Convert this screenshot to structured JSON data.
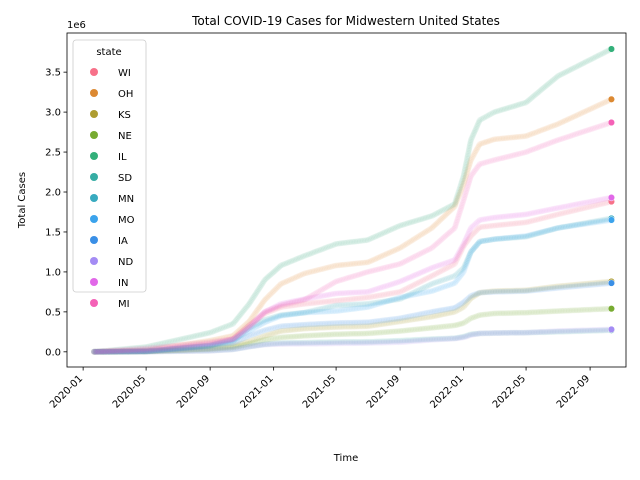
{
  "chart_data": {
    "type": "scatter",
    "title": "Total COVID-19 Cases for Midwestern United States",
    "xlabel": "Time",
    "ylabel": "Total Cases",
    "y_scale_label": "1e6",
    "ylim": [
      -0.19,
      3.99
    ],
    "xlim": [
      "2019-12-01",
      "2022-11-09"
    ],
    "x_ticks": [
      "2020-01",
      "2020-05",
      "2020-09",
      "2021-01",
      "2021-05",
      "2021-09",
      "2022-01",
      "2022-05",
      "2022-09"
    ],
    "y_ticks": [
      "0.0",
      "0.5",
      "1.0",
      "1.5",
      "2.0",
      "2.5",
      "3.0",
      "3.5"
    ],
    "grid": false,
    "legend": {
      "title": "state",
      "placement": "top-left"
    },
    "series": [
      {
        "name": "WI",
        "color": "#f77189",
        "points": [
          [
            "2020-01-22",
            0
          ],
          [
            "2020-05-01",
            0.0065
          ],
          [
            "2020-09-01",
            0.08
          ],
          [
            "2020-10-15",
            0.16
          ],
          [
            "2020-11-15",
            0.33
          ],
          [
            "2020-12-15",
            0.48
          ],
          [
            "2021-01-15",
            0.56
          ],
          [
            "2021-03-01",
            0.6
          ],
          [
            "2021-05-01",
            0.64
          ],
          [
            "2021-07-01",
            0.68
          ],
          [
            "2021-09-01",
            0.75
          ],
          [
            "2021-11-01",
            0.95
          ],
          [
            "2021-12-15",
            1.1
          ],
          [
            "2022-01-01",
            1.32
          ],
          [
            "2022-01-15",
            1.45
          ],
          [
            "2022-02-01",
            1.56
          ],
          [
            "2022-03-01",
            1.58
          ],
          [
            "2022-05-01",
            1.62
          ],
          [
            "2022-07-01",
            1.72
          ],
          [
            "2022-10-12",
            1.88
          ]
        ]
      },
      {
        "name": "OH",
        "color": "#dc8932",
        "points": [
          [
            "2020-01-22",
            0
          ],
          [
            "2020-05-01",
            0.018
          ],
          [
            "2020-09-01",
            0.14
          ],
          [
            "2020-10-15",
            0.2
          ],
          [
            "2020-11-15",
            0.38
          ],
          [
            "2020-12-15",
            0.65
          ],
          [
            "2021-01-15",
            0.85
          ],
          [
            "2021-03-01",
            0.98
          ],
          [
            "2021-05-01",
            1.08
          ],
          [
            "2021-07-01",
            1.12
          ],
          [
            "2021-09-01",
            1.3
          ],
          [
            "2021-11-01",
            1.55
          ],
          [
            "2021-12-15",
            1.82
          ],
          [
            "2022-01-01",
            2.1
          ],
          [
            "2022-01-15",
            2.4
          ],
          [
            "2022-02-01",
            2.6
          ],
          [
            "2022-03-01",
            2.66
          ],
          [
            "2022-05-01",
            2.7
          ],
          [
            "2022-07-01",
            2.85
          ],
          [
            "2022-10-12",
            3.16
          ]
        ]
      },
      {
        "name": "KS",
        "color": "#ae9d31",
        "points": [
          [
            "2020-01-22",
            0
          ],
          [
            "2020-05-01",
            0.0045
          ],
          [
            "2020-09-01",
            0.04
          ],
          [
            "2020-10-15",
            0.07
          ],
          [
            "2020-11-15",
            0.13
          ],
          [
            "2020-12-15",
            0.2
          ],
          [
            "2021-01-15",
            0.26
          ],
          [
            "2021-03-01",
            0.29
          ],
          [
            "2021-05-01",
            0.31
          ],
          [
            "2021-07-01",
            0.32
          ],
          [
            "2021-09-01",
            0.38
          ],
          [
            "2021-11-01",
            0.44
          ],
          [
            "2021-12-15",
            0.5
          ],
          [
            "2022-01-01",
            0.56
          ],
          [
            "2022-01-15",
            0.67
          ],
          [
            "2022-02-01",
            0.74
          ],
          [
            "2022-03-01",
            0.76
          ],
          [
            "2022-05-01",
            0.77
          ],
          [
            "2022-07-01",
            0.82
          ],
          [
            "2022-10-12",
            0.88
          ]
        ]
      },
      {
        "name": "NE",
        "color": "#77ab31",
        "points": [
          [
            "2020-01-22",
            0
          ],
          [
            "2020-05-01",
            0.004
          ],
          [
            "2020-09-01",
            0.035
          ],
          [
            "2020-10-15",
            0.055
          ],
          [
            "2020-11-15",
            0.1
          ],
          [
            "2020-12-15",
            0.15
          ],
          [
            "2021-01-15",
            0.18
          ],
          [
            "2021-03-01",
            0.2
          ],
          [
            "2021-05-01",
            0.22
          ],
          [
            "2021-07-01",
            0.23
          ],
          [
            "2021-09-01",
            0.26
          ],
          [
            "2021-11-01",
            0.3
          ],
          [
            "2021-12-15",
            0.33
          ],
          [
            "2022-01-01",
            0.36
          ],
          [
            "2022-01-15",
            0.42
          ],
          [
            "2022-02-01",
            0.46
          ],
          [
            "2022-03-01",
            0.48
          ],
          [
            "2022-05-01",
            0.49
          ],
          [
            "2022-07-01",
            0.51
          ],
          [
            "2022-10-12",
            0.54
          ]
        ]
      },
      {
        "name": "IL",
        "color": "#33b07a",
        "points": [
          [
            "2020-01-22",
            0
          ],
          [
            "2020-05-01",
            0.06
          ],
          [
            "2020-09-01",
            0.24
          ],
          [
            "2020-10-15",
            0.35
          ],
          [
            "2020-11-15",
            0.6
          ],
          [
            "2020-12-15",
            0.9
          ],
          [
            "2021-01-15",
            1.08
          ],
          [
            "2021-03-01",
            1.2
          ],
          [
            "2021-05-01",
            1.35
          ],
          [
            "2021-07-01",
            1.4
          ],
          [
            "2021-09-01",
            1.58
          ],
          [
            "2021-11-01",
            1.7
          ],
          [
            "2021-12-15",
            1.85
          ],
          [
            "2022-01-01",
            2.2
          ],
          [
            "2022-01-15",
            2.65
          ],
          [
            "2022-02-01",
            2.9
          ],
          [
            "2022-03-01",
            3.0
          ],
          [
            "2022-05-01",
            3.12
          ],
          [
            "2022-07-01",
            3.45
          ],
          [
            "2022-10-12",
            3.79
          ]
        ]
      },
      {
        "name": "SD",
        "color": "#36ada4",
        "points": [
          [
            "2020-01-22",
            0
          ],
          [
            "2020-05-01",
            0.0025
          ],
          [
            "2020-09-01",
            0.015
          ],
          [
            "2020-10-15",
            0.03
          ],
          [
            "2020-11-15",
            0.065
          ],
          [
            "2020-12-15",
            0.095
          ],
          [
            "2021-01-15",
            0.11
          ],
          [
            "2021-03-01",
            0.115
          ],
          [
            "2021-05-01",
            0.123
          ],
          [
            "2021-07-01",
            0.125
          ],
          [
            "2021-09-01",
            0.14
          ],
          [
            "2021-11-01",
            0.16
          ],
          [
            "2021-12-15",
            0.17
          ],
          [
            "2022-01-01",
            0.19
          ],
          [
            "2022-01-15",
            0.22
          ],
          [
            "2022-02-01",
            0.23
          ],
          [
            "2022-03-01",
            0.235
          ],
          [
            "2022-05-01",
            0.24
          ],
          [
            "2022-07-01",
            0.25
          ],
          [
            "2022-10-12",
            0.27
          ]
        ]
      },
      {
        "name": "MN",
        "color": "#38aabf",
        "points": [
          [
            "2020-01-22",
            0
          ],
          [
            "2020-05-01",
            0.006
          ],
          [
            "2020-09-01",
            0.08
          ],
          [
            "2020-10-15",
            0.13
          ],
          [
            "2020-11-15",
            0.3
          ],
          [
            "2020-12-15",
            0.4
          ],
          [
            "2021-01-15",
            0.46
          ],
          [
            "2021-03-01",
            0.49
          ],
          [
            "2021-05-01",
            0.58
          ],
          [
            "2021-07-01",
            0.6
          ],
          [
            "2021-09-01",
            0.66
          ],
          [
            "2021-11-01",
            0.85
          ],
          [
            "2021-12-15",
            0.95
          ],
          [
            "2022-01-01",
            1.05
          ],
          [
            "2022-01-15",
            1.25
          ],
          [
            "2022-02-01",
            1.38
          ],
          [
            "2022-03-01",
            1.41
          ],
          [
            "2022-05-01",
            1.44
          ],
          [
            "2022-07-01",
            1.55
          ],
          [
            "2022-10-12",
            1.67
          ]
        ]
      },
      {
        "name": "MO",
        "color": "#3ba3ec",
        "points": [
          [
            "2020-01-22",
            0
          ],
          [
            "2020-05-01",
            0.007
          ],
          [
            "2020-09-01",
            0.08
          ],
          [
            "2020-10-15",
            0.15
          ],
          [
            "2020-11-15",
            0.26
          ],
          [
            "2020-12-15",
            0.37
          ],
          [
            "2021-01-15",
            0.45
          ],
          [
            "2021-03-01",
            0.49
          ],
          [
            "2021-05-01",
            0.51
          ],
          [
            "2021-07-01",
            0.56
          ],
          [
            "2021-09-01",
            0.68
          ],
          [
            "2021-11-01",
            0.76
          ],
          [
            "2021-12-15",
            0.86
          ],
          [
            "2022-01-01",
            1.0
          ],
          [
            "2022-01-15",
            1.25
          ],
          [
            "2022-02-01",
            1.38
          ],
          [
            "2022-03-01",
            1.41
          ],
          [
            "2022-05-01",
            1.45
          ],
          [
            "2022-07-01",
            1.55
          ],
          [
            "2022-10-12",
            1.65
          ]
        ]
      },
      {
        "name": "IA",
        "color": "#3a8fe6",
        "points": [
          [
            "2020-01-22",
            0
          ],
          [
            "2020-05-01",
            0.005
          ],
          [
            "2020-09-01",
            0.07
          ],
          [
            "2020-10-15",
            0.11
          ],
          [
            "2020-11-15",
            0.2
          ],
          [
            "2020-12-15",
            0.27
          ],
          [
            "2021-01-15",
            0.32
          ],
          [
            "2021-03-01",
            0.34
          ],
          [
            "2021-05-01",
            0.36
          ],
          [
            "2021-07-01",
            0.37
          ],
          [
            "2021-09-01",
            0.42
          ],
          [
            "2021-11-01",
            0.5
          ],
          [
            "2021-12-15",
            0.55
          ],
          [
            "2022-01-01",
            0.62
          ],
          [
            "2022-01-15",
            0.7
          ],
          [
            "2022-02-01",
            0.74
          ],
          [
            "2022-03-01",
            0.75
          ],
          [
            "2022-05-01",
            0.76
          ],
          [
            "2022-07-01",
            0.8
          ],
          [
            "2022-10-12",
            0.86
          ]
        ]
      },
      {
        "name": "ND",
        "color": "#a48cf4",
        "points": [
          [
            "2020-01-22",
            0
          ],
          [
            "2020-05-01",
            0.0015
          ],
          [
            "2020-09-01",
            0.012
          ],
          [
            "2020-10-15",
            0.03
          ],
          [
            "2020-11-15",
            0.065
          ],
          [
            "2020-12-15",
            0.09
          ],
          [
            "2021-01-15",
            0.098
          ],
          [
            "2021-03-01",
            0.1
          ],
          [
            "2021-05-01",
            0.105
          ],
          [
            "2021-07-01",
            0.11
          ],
          [
            "2021-09-01",
            0.12
          ],
          [
            "2021-11-01",
            0.15
          ],
          [
            "2021-12-15",
            0.165
          ],
          [
            "2022-01-01",
            0.18
          ],
          [
            "2022-01-15",
            0.21
          ],
          [
            "2022-02-01",
            0.23
          ],
          [
            "2022-03-01",
            0.235
          ],
          [
            "2022-05-01",
            0.24
          ],
          [
            "2022-07-01",
            0.26
          ],
          [
            "2022-10-12",
            0.28
          ]
        ]
      },
      {
        "name": "IN",
        "color": "#e168e8",
        "points": [
          [
            "2020-01-22",
            0
          ],
          [
            "2020-05-01",
            0.02
          ],
          [
            "2020-09-01",
            0.1
          ],
          [
            "2020-10-15",
            0.16
          ],
          [
            "2020-11-15",
            0.3
          ],
          [
            "2020-12-15",
            0.5
          ],
          [
            "2021-01-15",
            0.6
          ],
          [
            "2021-03-01",
            0.66
          ],
          [
            "2021-05-01",
            0.73
          ],
          [
            "2021-07-01",
            0.75
          ],
          [
            "2021-09-01",
            0.88
          ],
          [
            "2021-11-01",
            1.05
          ],
          [
            "2021-12-15",
            1.15
          ],
          [
            "2022-01-01",
            1.35
          ],
          [
            "2022-01-15",
            1.55
          ],
          [
            "2022-02-01",
            1.65
          ],
          [
            "2022-03-01",
            1.68
          ],
          [
            "2022-05-01",
            1.72
          ],
          [
            "2022-07-01",
            1.8
          ],
          [
            "2022-10-12",
            1.93
          ]
        ]
      },
      {
        "name": "MI",
        "color": "#f461b6",
        "points": [
          [
            "2020-01-22",
            0
          ],
          [
            "2020-05-01",
            0.042
          ],
          [
            "2020-09-01",
            0.12
          ],
          [
            "2020-10-15",
            0.16
          ],
          [
            "2020-11-15",
            0.33
          ],
          [
            "2020-12-15",
            0.5
          ],
          [
            "2021-01-15",
            0.58
          ],
          [
            "2021-03-01",
            0.65
          ],
          [
            "2021-05-01",
            0.88
          ],
          [
            "2021-07-01",
            1.0
          ],
          [
            "2021-09-01",
            1.1
          ],
          [
            "2021-11-01",
            1.3
          ],
          [
            "2021-12-15",
            1.55
          ],
          [
            "2022-01-01",
            1.9
          ],
          [
            "2022-01-15",
            2.2
          ],
          [
            "2022-02-01",
            2.35
          ],
          [
            "2022-03-01",
            2.4
          ],
          [
            "2022-05-01",
            2.5
          ],
          [
            "2022-07-01",
            2.65
          ],
          [
            "2022-10-12",
            2.87
          ]
        ]
      }
    ]
  }
}
